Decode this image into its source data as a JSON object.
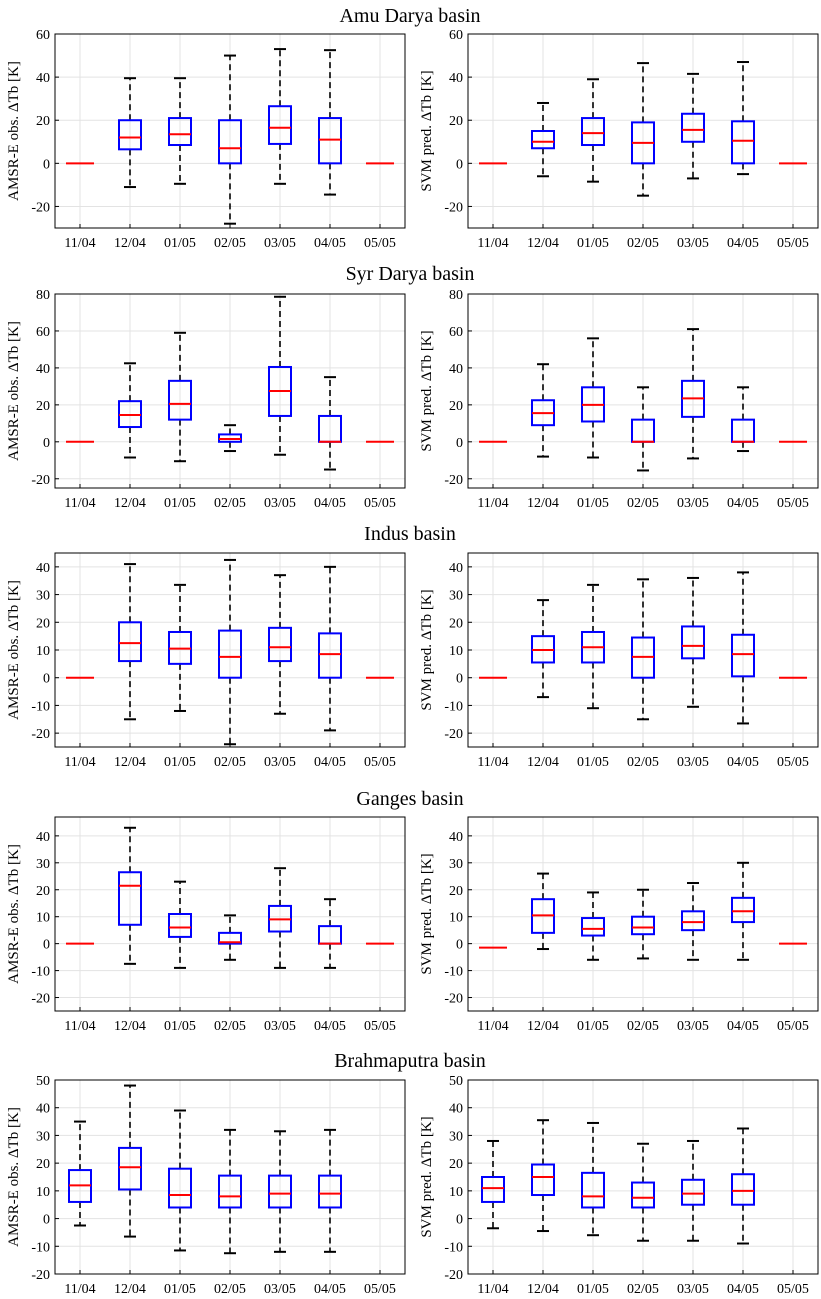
{
  "figure": {
    "months": [
      "11/04",
      "12/04",
      "01/05",
      "02/05",
      "03/05",
      "04/05",
      "05/05"
    ],
    "colors": {
      "box": "#0000ff",
      "median": "#ff0000",
      "whisker": "#000000",
      "grid": "#e3e3e3"
    }
  },
  "chart_data": [
    {
      "type": "boxplot",
      "title": "Amu Darya basin",
      "panels": [
        {
          "ylabel": "AMSR-E obs. ΔTb [K]",
          "ylim": [
            -30,
            60
          ],
          "yticks": [
            -20,
            0,
            20,
            40,
            60
          ],
          "categories": [
            "11/04",
            "12/04",
            "01/05",
            "02/05",
            "03/05",
            "04/05",
            "05/05"
          ],
          "boxes": [
            {
              "min": 0,
              "q1": 0,
              "median": 0,
              "q3": 0,
              "max": 0
            },
            {
              "min": -11,
              "q1": 6.5,
              "median": 12,
              "q3": 20,
              "max": 39.5
            },
            {
              "min": -9.5,
              "q1": 8.5,
              "median": 13.5,
              "q3": 21,
              "max": 39.5
            },
            {
              "min": -28,
              "q1": 0,
              "median": 7,
              "q3": 20,
              "max": 50
            },
            {
              "min": -9.5,
              "q1": 9,
              "median": 16.5,
              "q3": 26.5,
              "max": 53
            },
            {
              "min": -14.5,
              "q1": 0,
              "median": 11,
              "q3": 21,
              "max": 52.5
            },
            {
              "min": 0,
              "q1": 0,
              "median": 0,
              "q3": 0,
              "max": 0
            }
          ]
        },
        {
          "ylabel": "SVM pred. ΔTb [K]",
          "ylim": [
            -30,
            60
          ],
          "yticks": [
            -20,
            0,
            20,
            40,
            60
          ],
          "categories": [
            "11/04",
            "12/04",
            "01/05",
            "02/05",
            "03/05",
            "04/05",
            "05/05"
          ],
          "boxes": [
            {
              "min": 0,
              "q1": 0,
              "median": 0,
              "q3": 0,
              "max": 0
            },
            {
              "min": -6,
              "q1": 7,
              "median": 10,
              "q3": 15,
              "max": 28
            },
            {
              "min": -8.5,
              "q1": 8.5,
              "median": 14,
              "q3": 21,
              "max": 39
            },
            {
              "min": -15,
              "q1": 0,
              "median": 9.5,
              "q3": 19,
              "max": 46.5
            },
            {
              "min": -7,
              "q1": 10,
              "median": 15.5,
              "q3": 23,
              "max": 41.5
            },
            {
              "min": -5,
              "q1": 0,
              "median": 10.5,
              "q3": 19.5,
              "max": 47
            },
            {
              "min": 0,
              "q1": 0,
              "median": 0,
              "q3": 0,
              "max": 0
            }
          ]
        }
      ]
    },
    {
      "type": "boxplot",
      "title": "Syr Darya basin",
      "panels": [
        {
          "ylabel": "AMSR-E obs. ΔTb [K]",
          "ylim": [
            -25,
            80
          ],
          "yticks": [
            -20,
            0,
            20,
            40,
            60,
            80
          ],
          "categories": [
            "11/04",
            "12/04",
            "01/05",
            "02/05",
            "03/05",
            "04/05",
            "05/05"
          ],
          "boxes": [
            {
              "min": 0,
              "q1": 0,
              "median": 0,
              "q3": 0,
              "max": 0
            },
            {
              "min": -8.5,
              "q1": 8,
              "median": 14.5,
              "q3": 22,
              "max": 42.5
            },
            {
              "min": -10.5,
              "q1": 12,
              "median": 20.5,
              "q3": 33,
              "max": 59
            },
            {
              "min": -5,
              "q1": 0,
              "median": 1.5,
              "q3": 4,
              "max": 9
            },
            {
              "min": -7,
              "q1": 14,
              "median": 27.5,
              "q3": 40.5,
              "max": 78.5
            },
            {
              "min": -15,
              "q1": 0,
              "median": 0,
              "q3": 14,
              "max": 35
            },
            {
              "min": 0,
              "q1": 0,
              "median": 0,
              "q3": 0,
              "max": 0
            }
          ]
        },
        {
          "ylabel": "SVM pred. ΔTb [K]",
          "ylim": [
            -25,
            80
          ],
          "yticks": [
            -20,
            0,
            20,
            40,
            60,
            80
          ],
          "categories": [
            "11/04",
            "12/04",
            "01/05",
            "02/05",
            "03/05",
            "04/05",
            "05/05"
          ],
          "boxes": [
            {
              "min": 0,
              "q1": 0,
              "median": 0,
              "q3": 0,
              "max": 0
            },
            {
              "min": -8,
              "q1": 9,
              "median": 15.5,
              "q3": 22.5,
              "max": 42
            },
            {
              "min": -8.5,
              "q1": 11,
              "median": 20,
              "q3": 29.5,
              "max": 56
            },
            {
              "min": -15.5,
              "q1": 0,
              "median": 0,
              "q3": 12,
              "max": 29.5
            },
            {
              "min": -9,
              "q1": 13.5,
              "median": 23.5,
              "q3": 33,
              "max": 61
            },
            {
              "min": -5,
              "q1": 0,
              "median": 0,
              "q3": 12,
              "max": 29.5
            },
            {
              "min": 0,
              "q1": 0,
              "median": 0,
              "q3": 0,
              "max": 0
            }
          ]
        }
      ]
    },
    {
      "type": "boxplot",
      "title": "Indus basin",
      "panels": [
        {
          "ylabel": "AMSR-E obs. ΔTb [K]",
          "ylim": [
            -25,
            45
          ],
          "yticks": [
            -20,
            -10,
            0,
            10,
            20,
            30,
            40
          ],
          "categories": [
            "11/04",
            "12/04",
            "01/05",
            "02/05",
            "03/05",
            "04/05",
            "05/05"
          ],
          "boxes": [
            {
              "min": 0,
              "q1": 0,
              "median": 0,
              "q3": 0,
              "max": 0
            },
            {
              "min": -15,
              "q1": 6,
              "median": 12.5,
              "q3": 20,
              "max": 41
            },
            {
              "min": -12,
              "q1": 5,
              "median": 10.5,
              "q3": 16.5,
              "max": 33.5
            },
            {
              "min": -24,
              "q1": 0,
              "median": 7.5,
              "q3": 17,
              "max": 42.5
            },
            {
              "min": -13,
              "q1": 6,
              "median": 11,
              "q3": 18,
              "max": 37
            },
            {
              "min": -19,
              "q1": 0,
              "median": 8.5,
              "q3": 16,
              "max": 40
            },
            {
              "min": 0,
              "q1": 0,
              "median": 0,
              "q3": 0,
              "max": 0
            }
          ]
        },
        {
          "ylabel": "SVM pred. ΔTb [K]",
          "ylim": [
            -25,
            45
          ],
          "yticks": [
            -20,
            -10,
            0,
            10,
            20,
            30,
            40
          ],
          "categories": [
            "11/04",
            "12/04",
            "01/05",
            "02/05",
            "03/05",
            "04/05",
            "05/05"
          ],
          "boxes": [
            {
              "min": 0,
              "q1": 0,
              "median": 0,
              "q3": 0,
              "max": 0
            },
            {
              "min": -7,
              "q1": 5.5,
              "median": 10,
              "q3": 15,
              "max": 28
            },
            {
              "min": -11,
              "q1": 5.5,
              "median": 11,
              "q3": 16.5,
              "max": 33.5
            },
            {
              "min": -15,
              "q1": 0,
              "median": 7.5,
              "q3": 14.5,
              "max": 35.5
            },
            {
              "min": -10.5,
              "q1": 7,
              "median": 11.5,
              "q3": 18.5,
              "max": 36
            },
            {
              "min": -16.5,
              "q1": 0.5,
              "median": 8.5,
              "q3": 15.5,
              "max": 38
            },
            {
              "min": 0,
              "q1": 0,
              "median": 0,
              "q3": 0,
              "max": 0
            }
          ]
        }
      ]
    },
    {
      "type": "boxplot",
      "title": "Ganges basin",
      "panels": [
        {
          "ylabel": "AMSR-E obs. ΔTb [K]",
          "ylim": [
            -25,
            47
          ],
          "yticks": [
            -20,
            -10,
            0,
            10,
            20,
            30,
            40
          ],
          "categories": [
            "11/04",
            "12/04",
            "01/05",
            "02/05",
            "03/05",
            "04/05",
            "05/05"
          ],
          "boxes": [
            {
              "min": 0,
              "q1": 0,
              "median": 0,
              "q3": 0,
              "max": 0
            },
            {
              "min": -7.5,
              "q1": 7,
              "median": 21.5,
              "q3": 26.5,
              "max": 43
            },
            {
              "min": -9,
              "q1": 2.5,
              "median": 6,
              "q3": 11,
              "max": 23
            },
            {
              "min": -6,
              "q1": 0,
              "median": 0.5,
              "q3": 4,
              "max": 10.5
            },
            {
              "min": -9,
              "q1": 4.5,
              "median": 9,
              "q3": 14,
              "max": 28
            },
            {
              "min": -9,
              "q1": 0,
              "median": 0,
              "q3": 6.5,
              "max": 16.5
            },
            {
              "min": 0,
              "q1": 0,
              "median": 0,
              "q3": 0,
              "max": 0
            }
          ]
        },
        {
          "ylabel": "SVM pred. ΔTb [K]",
          "ylim": [
            -25,
            47
          ],
          "yticks": [
            -20,
            -10,
            0,
            10,
            20,
            30,
            40
          ],
          "categories": [
            "11/04",
            "12/04",
            "01/05",
            "02/05",
            "03/05",
            "04/05",
            "05/05"
          ],
          "boxes": [
            {
              "min": -1.5,
              "q1": -1.5,
              "median": -1.5,
              "q3": -1.5,
              "max": -1.5
            },
            {
              "min": -2,
              "q1": 4,
              "median": 10.5,
              "q3": 16.5,
              "max": 26
            },
            {
              "min": -6,
              "q1": 3,
              "median": 5.5,
              "q3": 9.5,
              "max": 19
            },
            {
              "min": -5.5,
              "q1": 3.5,
              "median": 6,
              "q3": 10,
              "max": 20
            },
            {
              "min": -6,
              "q1": 5,
              "median": 8,
              "q3": 12,
              "max": 22.5
            },
            {
              "min": -6,
              "q1": 8,
              "median": 12,
              "q3": 17,
              "max": 30
            },
            {
              "min": 0,
              "q1": 0,
              "median": 0,
              "q3": 0,
              "max": 0
            }
          ]
        }
      ]
    },
    {
      "type": "boxplot",
      "title": "Brahmaputra basin",
      "panels": [
        {
          "ylabel": "AMSR-E obs. ΔTb [K]",
          "ylim": [
            -20,
            50
          ],
          "yticks": [
            -20,
            -10,
            0,
            10,
            20,
            30,
            40,
            50
          ],
          "categories": [
            "11/04",
            "12/04",
            "01/05",
            "02/05",
            "03/05",
            "04/05",
            "05/05"
          ],
          "boxes": [
            {
              "min": -2.5,
              "q1": 6,
              "median": 12,
              "q3": 17.5,
              "max": 35
            },
            {
              "min": -6.5,
              "q1": 10.5,
              "median": 18.5,
              "q3": 25.5,
              "max": 48
            },
            {
              "min": -11.5,
              "q1": 4,
              "median": 8.5,
              "q3": 18,
              "max": 39
            },
            {
              "min": -12.5,
              "q1": 4,
              "median": 8,
              "q3": 15.5,
              "max": 32
            },
            {
              "min": -12,
              "q1": 4,
              "median": 9,
              "q3": 15.5,
              "max": 31.5
            },
            {
              "min": -12,
              "q1": 4,
              "median": 9,
              "q3": 15.5,
              "max": 32
            },
            null
          ]
        },
        {
          "ylabel": "SVM pred. ΔTb [K]",
          "ylim": [
            -20,
            50
          ],
          "yticks": [
            -20,
            -10,
            0,
            10,
            20,
            30,
            40,
            50
          ],
          "categories": [
            "11/04",
            "12/04",
            "01/05",
            "02/05",
            "03/05",
            "04/05",
            "05/05"
          ],
          "boxes": [
            {
              "min": -3.5,
              "q1": 6,
              "median": 11,
              "q3": 15,
              "max": 28
            },
            {
              "min": -4.5,
              "q1": 8.5,
              "median": 15,
              "q3": 19.5,
              "max": 35.5
            },
            {
              "min": -6,
              "q1": 4,
              "median": 8,
              "q3": 16.5,
              "max": 34.5
            },
            {
              "min": -8,
              "q1": 4,
              "median": 7.5,
              "q3": 13,
              "max": 27
            },
            {
              "min": -8,
              "q1": 5,
              "median": 9,
              "q3": 14,
              "max": 28
            },
            {
              "min": -9,
              "q1": 5,
              "median": 10,
              "q3": 16,
              "max": 32.5
            },
            null
          ]
        }
      ]
    }
  ]
}
